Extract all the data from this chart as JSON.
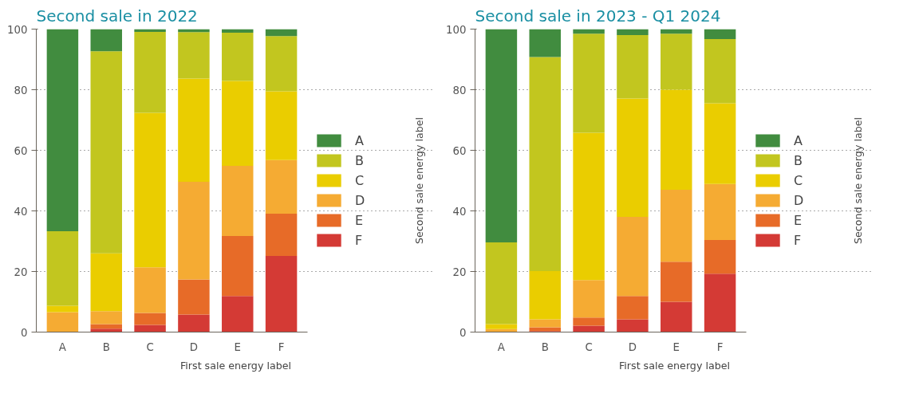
{
  "chart_data": [
    {
      "type": "bar",
      "stacked": true,
      "title": "Second sale in 2022",
      "xlabel": "First sale energy label",
      "legend_title": "Second sale energy label",
      "categories": [
        "A",
        "B",
        "C",
        "D",
        "E",
        "F"
      ],
      "ylim": [
        0,
        100
      ],
      "yticks": [
        0,
        20,
        40,
        60,
        80,
        100
      ],
      "grid": "y",
      "legend": "right",
      "series": [
        {
          "name": "F",
          "color": "#d43a35",
          "values": [
            0,
            1.1,
            2.4,
            5.8,
            11.9,
            25.1
          ]
        },
        {
          "name": "E",
          "color": "#e76b28",
          "values": [
            0,
            1.5,
            3.9,
            11.6,
            19.8,
            14.0
          ]
        },
        {
          "name": "D",
          "color": "#f5ab33",
          "values": [
            6.6,
            4.3,
            15.1,
            32.2,
            23.2,
            17.7
          ]
        },
        {
          "name": "C",
          "color": "#eacd00",
          "values": [
            2.1,
            19.1,
            51.0,
            34.1,
            28.0,
            22.7
          ]
        },
        {
          "name": "B",
          "color": "#c2c61f",
          "values": [
            24.6,
            66.7,
            26.7,
            15.3,
            15.9,
            18.2
          ]
        },
        {
          "name": "A",
          "color": "#418c3f",
          "values": [
            66.7,
            7.3,
            0.9,
            1.0,
            1.2,
            2.3
          ]
        }
      ]
    },
    {
      "type": "bar",
      "stacked": true,
      "title": "Second sale in 2023 - Q1 2024",
      "xlabel": "First sale energy label",
      "legend_title": "Second sale energy label",
      "categories": [
        "A",
        "B",
        "C",
        "D",
        "E",
        "F"
      ],
      "ylim": [
        0,
        100
      ],
      "yticks": [
        0,
        20,
        40,
        60,
        80,
        100
      ],
      "grid": "y",
      "legend": "right",
      "series": [
        {
          "name": "F",
          "color": "#d43a35",
          "values": [
            0,
            0.3,
            2.1,
            4.2,
            10.0,
            19.3
          ]
        },
        {
          "name": "E",
          "color": "#e76b28",
          "values": [
            0,
            1.3,
            2.7,
            7.7,
            13.2,
            11.1
          ]
        },
        {
          "name": "D",
          "color": "#f5ab33",
          "values": [
            1.0,
            2.6,
            12.4,
            26.1,
            23.8,
            18.5
          ]
        },
        {
          "name": "C",
          "color": "#eacd00",
          "values": [
            1.6,
            15.9,
            48.6,
            39.1,
            33.0,
            26.6
          ]
        },
        {
          "name": "B",
          "color": "#c2c61f",
          "values": [
            27.0,
            70.7,
            32.7,
            20.9,
            18.5,
            21.2
          ]
        },
        {
          "name": "A",
          "color": "#418c3f",
          "values": [
            70.4,
            9.2,
            1.5,
            2.0,
            1.5,
            3.3
          ]
        }
      ]
    }
  ]
}
